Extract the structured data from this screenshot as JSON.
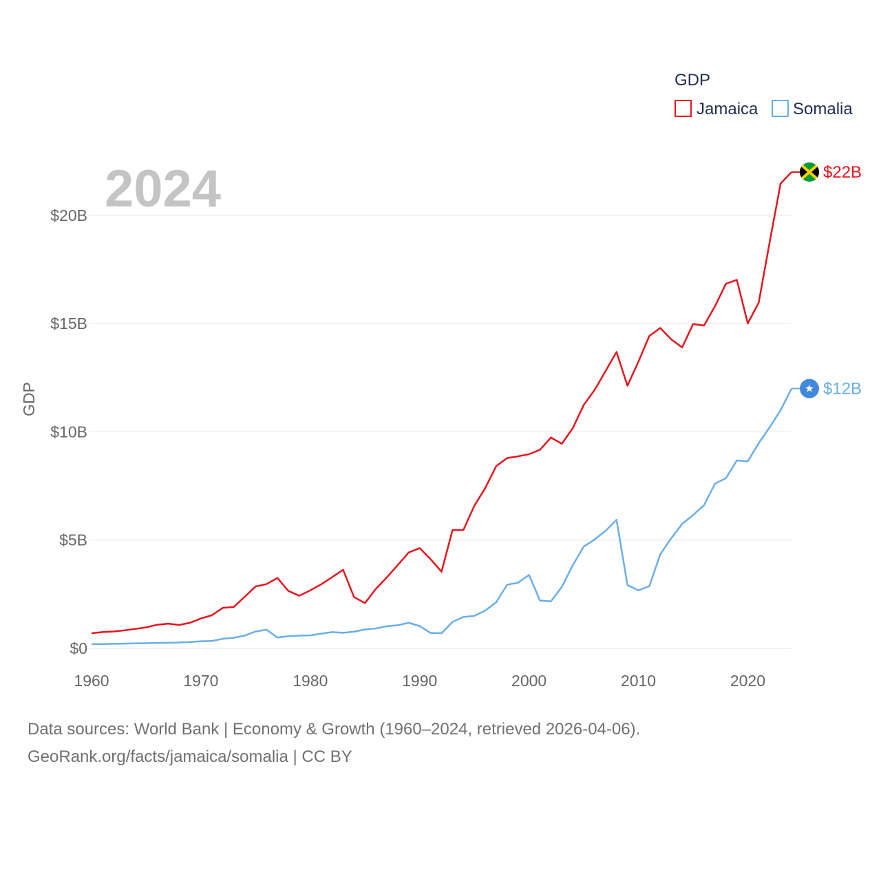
{
  "chart_data": {
    "type": "line",
    "legend_title": "GDP",
    "ylabel": "GDP",
    "year_label": "2024",
    "ylim": [
      0,
      22000000000
    ],
    "xlim": [
      1960,
      2024
    ],
    "x_ticks": [
      1960,
      1970,
      1980,
      1990,
      2000,
      2010,
      2020
    ],
    "y_ticks": [
      {
        "value": 0,
        "label": "$0"
      },
      {
        "value": 5000000000,
        "label": "$5B"
      },
      {
        "value": 10000000000,
        "label": "$10B"
      },
      {
        "value": 15000000000,
        "label": "$15B"
      },
      {
        "value": 20000000000,
        "label": "$20B"
      }
    ],
    "x": [
      1960,
      1961,
      1962,
      1963,
      1964,
      1965,
      1966,
      1967,
      1968,
      1969,
      1970,
      1971,
      1972,
      1973,
      1974,
      1975,
      1976,
      1977,
      1978,
      1979,
      1980,
      1981,
      1982,
      1983,
      1984,
      1985,
      1986,
      1987,
      1988,
      1989,
      1990,
      1991,
      1992,
      1993,
      1994,
      1995,
      1996,
      1997,
      1998,
      1999,
      2000,
      2001,
      2002,
      2003,
      2004,
      2005,
      2006,
      2007,
      2008,
      2009,
      2010,
      2011,
      2012,
      2013,
      2014,
      2015,
      2016,
      2017,
      2018,
      2019,
      2020,
      2021,
      2022,
      2023,
      2024
    ],
    "series": [
      {
        "name": "Jamaica",
        "color": "#e8131b",
        "end_label": "$22B",
        "end_icon": "jamaica-flag-icon",
        "values": [
          0.7,
          0.75,
          0.78,
          0.83,
          0.9,
          0.97,
          1.09,
          1.14,
          1.08,
          1.18,
          1.38,
          1.53,
          1.87,
          1.91,
          2.38,
          2.86,
          2.97,
          3.25,
          2.65,
          2.43,
          2.68,
          2.96,
          3.29,
          3.63,
          2.37,
          2.09,
          2.75,
          3.28,
          3.85,
          4.43,
          4.63,
          4.12,
          3.54,
          5.46,
          5.47,
          6.59,
          7.41,
          8.42,
          8.79,
          8.87,
          8.97,
          9.17,
          9.74,
          9.45,
          10.17,
          11.24,
          11.94,
          12.81,
          13.69,
          12.13,
          13.24,
          14.43,
          14.8,
          14.27,
          13.9,
          14.98,
          14.91,
          15.8,
          16.84,
          17.02,
          15.01,
          15.97,
          18.76,
          21.47,
          22.0
        ]
      },
      {
        "name": "Somalia",
        "color": "#6aaee7",
        "end_label": "$12B",
        "end_icon": "somalia-flag-icon",
        "values": [
          0.19,
          0.2,
          0.21,
          0.22,
          0.23,
          0.24,
          0.25,
          0.26,
          0.27,
          0.29,
          0.33,
          0.34,
          0.44,
          0.49,
          0.59,
          0.78,
          0.86,
          0.5,
          0.56,
          0.59,
          0.6,
          0.68,
          0.75,
          0.72,
          0.77,
          0.87,
          0.92,
          1.02,
          1.07,
          1.18,
          1.03,
          0.71,
          0.7,
          1.22,
          1.45,
          1.5,
          1.75,
          2.13,
          2.94,
          3.03,
          3.39,
          2.21,
          2.17,
          2.84,
          3.84,
          4.7,
          5.03,
          5.43,
          5.94,
          2.92,
          2.68,
          2.87,
          4.35,
          5.08,
          5.75,
          6.16,
          6.61,
          7.61,
          7.86,
          8.68,
          8.64,
          9.48,
          10.21,
          11.0,
          12.0
        ]
      }
    ]
  },
  "footer": {
    "line1": "Data sources: World Bank | Economy & Growth (1960–2024, retrieved 2026-04-06).",
    "line2": "GeoRank.org/facts/jamaica/somalia | CC BY"
  }
}
